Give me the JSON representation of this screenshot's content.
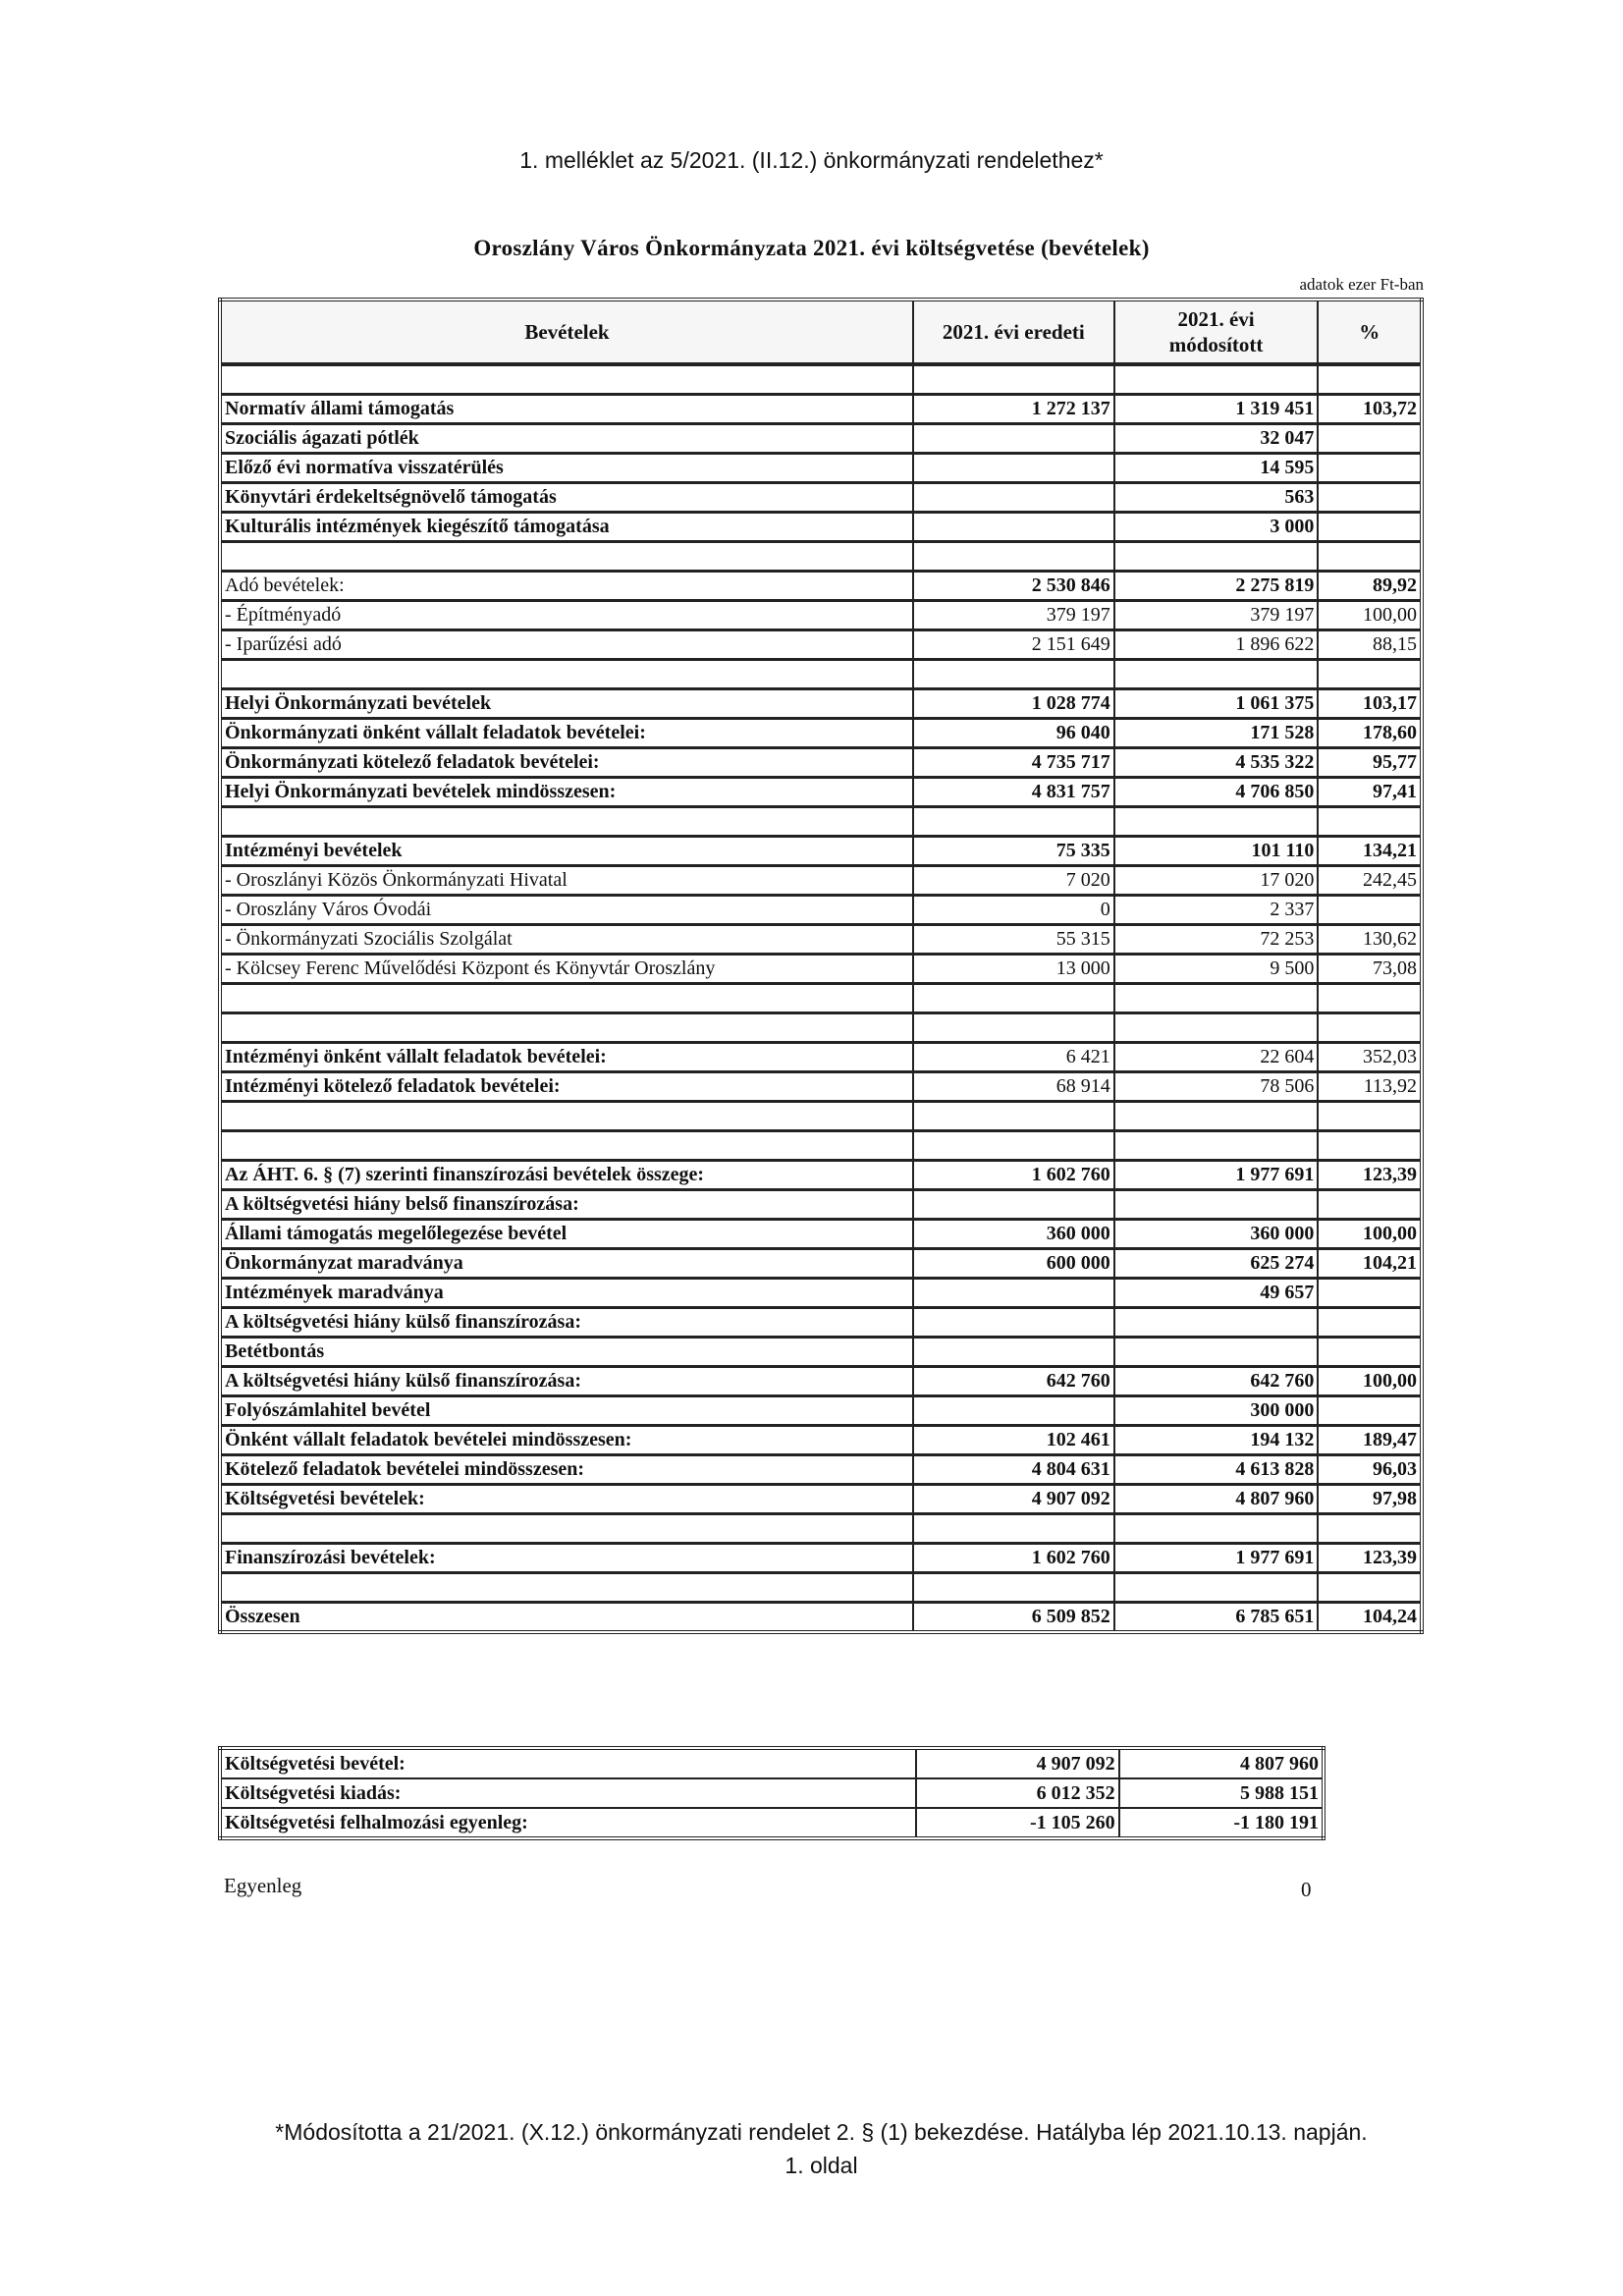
{
  "annex_title": "1. melléklet az 5/2021. (II.12.) önkormányzati rendelethez*",
  "doc_title": "Oroszlány Város Önkormányzata 2021. évi költségvetése (bevételek)",
  "unit_note": "adatok ezer Ft-ban",
  "table": {
    "headers": [
      "Bevételek",
      "2021. évi eredeti",
      "2021. évi módosított",
      "%"
    ],
    "rows": [
      {},
      {
        "label": "Normatív állami támogatás",
        "orig": "1 272 137",
        "mod": "1 319 451",
        "pct": "103,72",
        "bold": true
      },
      {
        "label": "Szociális ágazati pótlék",
        "orig": "",
        "mod": "32 047",
        "pct": "",
        "bold": true
      },
      {
        "label": "Előző évi normatíva visszatérülés",
        "orig": "",
        "mod": "14 595",
        "pct": "",
        "bold": true
      },
      {
        "label": "Könyvtári érdekeltségnövelő támogatás",
        "orig": "",
        "mod": "563",
        "pct": "",
        "bold": true
      },
      {
        "label": "Kulturális intézmények kiegészítő támogatása",
        "orig": "",
        "mod": "3 000",
        "pct": "",
        "bold": true
      },
      {},
      {
        "label": "Adó bevételek:",
        "orig": "2 530 846",
        "mod": "2 275 819",
        "pct": "89,92",
        "bold": false,
        "numbold": true,
        "indent": true
      },
      {
        "label": "- Építményadó",
        "orig": "379 197",
        "mod": "379 197",
        "pct": "100,00",
        "bold": false,
        "indent": true
      },
      {
        "label": "- Iparűzési adó",
        "orig": "2 151 649",
        "mod": "1 896 622",
        "pct": "88,15",
        "bold": false,
        "indent": true
      },
      {},
      {
        "label": "Helyi Önkormányzati bevételek",
        "orig": "1 028 774",
        "mod": "1 061 375",
        "pct": "103,17",
        "bold": true
      },
      {
        "label": "Önkormányzati önként vállalt feladatok bevételei:",
        "orig": "96 040",
        "mod": "171 528",
        "pct": "178,60",
        "bold": true
      },
      {
        "label": "Önkormányzati kötelező feladatok bevételei:",
        "orig": "4 735 717",
        "mod": "4 535 322",
        "pct": "95,77",
        "bold": true
      },
      {
        "label": "Helyi Önkormányzati bevételek mindösszesen:",
        "orig": "4 831 757",
        "mod": "4 706 850",
        "pct": "97,41",
        "bold": true
      },
      {},
      {
        "label": "Intézményi bevételek",
        "orig": "75 335",
        "mod": "101 110",
        "pct": "134,21",
        "bold": true
      },
      {
        "label": "- Oroszlányi Közös Önkormányzati Hivatal",
        "orig": "7 020",
        "mod": "17 020",
        "pct": "242,45",
        "bold": false,
        "indent": true
      },
      {
        "label": "- Oroszlány Város Óvodái",
        "orig": "0",
        "mod": "2 337",
        "pct": "",
        "bold": false,
        "indent": true
      },
      {
        "label": "- Önkormányzati Szociális Szolgálat",
        "orig": "55 315",
        "mod": "72 253",
        "pct": "130,62",
        "bold": false,
        "indent": true
      },
      {
        "label": "- Kölcsey Ferenc Művelődési Központ és Könyvtár Oroszlány",
        "orig": "13 000",
        "mod": "9 500",
        "pct": "73,08",
        "bold": false,
        "indent": true
      },
      {},
      {},
      {
        "label": "Intézményi önként vállalt feladatok bevételei:",
        "orig": "6 421",
        "mod": "22 604",
        "pct": "352,03",
        "bold": false,
        "labelbold": true
      },
      {
        "label": "Intézményi kötelező feladatok bevételei:",
        "orig": "68 914",
        "mod": "78 506",
        "pct": "113,92",
        "bold": false,
        "labelbold": true
      },
      {},
      {},
      {
        "label": "Az  ÁHT. 6. § (7) szerinti finanszírozási bevételek összege:",
        "orig": "1 602 760",
        "mod": "1 977 691",
        "pct": "123,39",
        "bold": true
      },
      {
        "label": "A költségvetési hiány belső finanszírozása:",
        "orig": "",
        "mod": "",
        "pct": "",
        "bold": true
      },
      {
        "label": "Állami támogatás megelőlegezése bevétel",
        "orig": "360 000",
        "mod": "360 000",
        "pct": "100,00",
        "bold": true
      },
      {
        "label": "Önkormányzat maradványa",
        "orig": "600 000",
        "mod": "625 274",
        "pct": "104,21",
        "bold": true
      },
      {
        "label": "Intézmények maradványa",
        "orig": "",
        "mod": "49 657",
        "pct": "",
        "bold": true
      },
      {
        "label": "A költségvetési hiány külső finanszírozása:",
        "orig": "",
        "mod": "",
        "pct": "",
        "bold": true
      },
      {
        "label": "Betétbontás",
        "orig": "",
        "mod": "",
        "pct": "",
        "bold": true
      },
      {
        "label": "A költségvetési hiány külső finanszírozása:",
        "orig": "642 760",
        "mod": "642 760",
        "pct": "100,00",
        "bold": true
      },
      {
        "label": "Folyószámlahitel bevétel",
        "orig": "",
        "mod": "300 000",
        "pct": "",
        "bold": true
      },
      {
        "label": "Önként vállalt feladatok bevételei mindösszesen:",
        "orig": "102 461",
        "mod": "194 132",
        "pct": "189,47",
        "bold": true
      },
      {
        "label": "Kötelező feladatok bevételei mindösszesen:",
        "orig": "4 804 631",
        "mod": "4 613 828",
        "pct": "96,03",
        "bold": true
      },
      {
        "label": "Költségvetési bevételek:",
        "orig": "4 907 092",
        "mod": "4 807 960",
        "pct": "97,98",
        "bold": true
      },
      {},
      {
        "label": "Finanszírozási bevételek:",
        "orig": "1 602 760",
        "mod": "1 977 691",
        "pct": "123,39",
        "bold": true
      },
      {},
      {
        "label": "Összesen",
        "orig": "6 509 852",
        "mod": "6 785 651",
        "pct": "104,24",
        "bold": true,
        "tall": true
      }
    ]
  },
  "summary": [
    {
      "label": "Költségvetési bevétel:",
      "orig": "4 907 092",
      "mod": "4 807 960"
    },
    {
      "label": "Költségvetési kiadás:",
      "orig": "6 012 352",
      "mod": "5 988 151"
    },
    {
      "label": "Költségvetési felhalmozási egyenleg:",
      "orig": "-1 105 260",
      "mod": "-1 180 191"
    }
  ],
  "balance": {
    "label": "Egyenleg",
    "value": "0"
  },
  "footnote": "*Módosította a 21/2021. (X.12.) önkormányzati rendelet 2. § (1) bekezdése. Hatályba lép 2021.10.13. napján.",
  "page_label": "1. oldal"
}
